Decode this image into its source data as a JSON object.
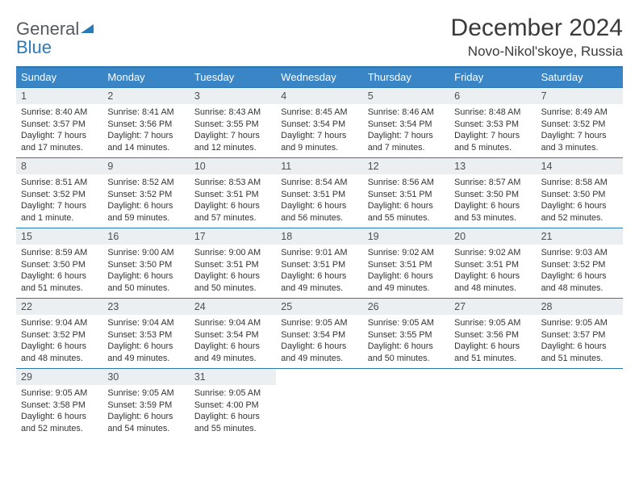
{
  "logo": {
    "general": "General",
    "blue": "Blue"
  },
  "header": {
    "title": "December 2024",
    "location": "Novo-Nikol'skoye, Russia"
  },
  "colors": {
    "header_bg": "#3a85c6",
    "border": "#2a77b5",
    "daynum_bg": "#eceff1",
    "text": "#333333",
    "logo_blue": "#2a7ab9",
    "logo_gray": "#555a5e"
  },
  "day_names": [
    "Sunday",
    "Monday",
    "Tuesday",
    "Wednesday",
    "Thursday",
    "Friday",
    "Saturday"
  ],
  "weeks": [
    [
      {
        "n": "1",
        "sr": "Sunrise: 8:40 AM",
        "ss": "Sunset: 3:57 PM",
        "d1": "Daylight: 7 hours",
        "d2": "and 17 minutes."
      },
      {
        "n": "2",
        "sr": "Sunrise: 8:41 AM",
        "ss": "Sunset: 3:56 PM",
        "d1": "Daylight: 7 hours",
        "d2": "and 14 minutes."
      },
      {
        "n": "3",
        "sr": "Sunrise: 8:43 AM",
        "ss": "Sunset: 3:55 PM",
        "d1": "Daylight: 7 hours",
        "d2": "and 12 minutes."
      },
      {
        "n": "4",
        "sr": "Sunrise: 8:45 AM",
        "ss": "Sunset: 3:54 PM",
        "d1": "Daylight: 7 hours",
        "d2": "and 9 minutes."
      },
      {
        "n": "5",
        "sr": "Sunrise: 8:46 AM",
        "ss": "Sunset: 3:54 PM",
        "d1": "Daylight: 7 hours",
        "d2": "and 7 minutes."
      },
      {
        "n": "6",
        "sr": "Sunrise: 8:48 AM",
        "ss": "Sunset: 3:53 PM",
        "d1": "Daylight: 7 hours",
        "d2": "and 5 minutes."
      },
      {
        "n": "7",
        "sr": "Sunrise: 8:49 AM",
        "ss": "Sunset: 3:52 PM",
        "d1": "Daylight: 7 hours",
        "d2": "and 3 minutes."
      }
    ],
    [
      {
        "n": "8",
        "sr": "Sunrise: 8:51 AM",
        "ss": "Sunset: 3:52 PM",
        "d1": "Daylight: 7 hours",
        "d2": "and 1 minute."
      },
      {
        "n": "9",
        "sr": "Sunrise: 8:52 AM",
        "ss": "Sunset: 3:52 PM",
        "d1": "Daylight: 6 hours",
        "d2": "and 59 minutes."
      },
      {
        "n": "10",
        "sr": "Sunrise: 8:53 AM",
        "ss": "Sunset: 3:51 PM",
        "d1": "Daylight: 6 hours",
        "d2": "and 57 minutes."
      },
      {
        "n": "11",
        "sr": "Sunrise: 8:54 AM",
        "ss": "Sunset: 3:51 PM",
        "d1": "Daylight: 6 hours",
        "d2": "and 56 minutes."
      },
      {
        "n": "12",
        "sr": "Sunrise: 8:56 AM",
        "ss": "Sunset: 3:51 PM",
        "d1": "Daylight: 6 hours",
        "d2": "and 55 minutes."
      },
      {
        "n": "13",
        "sr": "Sunrise: 8:57 AM",
        "ss": "Sunset: 3:50 PM",
        "d1": "Daylight: 6 hours",
        "d2": "and 53 minutes."
      },
      {
        "n": "14",
        "sr": "Sunrise: 8:58 AM",
        "ss": "Sunset: 3:50 PM",
        "d1": "Daylight: 6 hours",
        "d2": "and 52 minutes."
      }
    ],
    [
      {
        "n": "15",
        "sr": "Sunrise: 8:59 AM",
        "ss": "Sunset: 3:50 PM",
        "d1": "Daylight: 6 hours",
        "d2": "and 51 minutes."
      },
      {
        "n": "16",
        "sr": "Sunrise: 9:00 AM",
        "ss": "Sunset: 3:50 PM",
        "d1": "Daylight: 6 hours",
        "d2": "and 50 minutes."
      },
      {
        "n": "17",
        "sr": "Sunrise: 9:00 AM",
        "ss": "Sunset: 3:51 PM",
        "d1": "Daylight: 6 hours",
        "d2": "and 50 minutes."
      },
      {
        "n": "18",
        "sr": "Sunrise: 9:01 AM",
        "ss": "Sunset: 3:51 PM",
        "d1": "Daylight: 6 hours",
        "d2": "and 49 minutes."
      },
      {
        "n": "19",
        "sr": "Sunrise: 9:02 AM",
        "ss": "Sunset: 3:51 PM",
        "d1": "Daylight: 6 hours",
        "d2": "and 49 minutes."
      },
      {
        "n": "20",
        "sr": "Sunrise: 9:02 AM",
        "ss": "Sunset: 3:51 PM",
        "d1": "Daylight: 6 hours",
        "d2": "and 48 minutes."
      },
      {
        "n": "21",
        "sr": "Sunrise: 9:03 AM",
        "ss": "Sunset: 3:52 PM",
        "d1": "Daylight: 6 hours",
        "d2": "and 48 minutes."
      }
    ],
    [
      {
        "n": "22",
        "sr": "Sunrise: 9:04 AM",
        "ss": "Sunset: 3:52 PM",
        "d1": "Daylight: 6 hours",
        "d2": "and 48 minutes."
      },
      {
        "n": "23",
        "sr": "Sunrise: 9:04 AM",
        "ss": "Sunset: 3:53 PM",
        "d1": "Daylight: 6 hours",
        "d2": "and 49 minutes."
      },
      {
        "n": "24",
        "sr": "Sunrise: 9:04 AM",
        "ss": "Sunset: 3:54 PM",
        "d1": "Daylight: 6 hours",
        "d2": "and 49 minutes."
      },
      {
        "n": "25",
        "sr": "Sunrise: 9:05 AM",
        "ss": "Sunset: 3:54 PM",
        "d1": "Daylight: 6 hours",
        "d2": "and 49 minutes."
      },
      {
        "n": "26",
        "sr": "Sunrise: 9:05 AM",
        "ss": "Sunset: 3:55 PM",
        "d1": "Daylight: 6 hours",
        "d2": "and 50 minutes."
      },
      {
        "n": "27",
        "sr": "Sunrise: 9:05 AM",
        "ss": "Sunset: 3:56 PM",
        "d1": "Daylight: 6 hours",
        "d2": "and 51 minutes."
      },
      {
        "n": "28",
        "sr": "Sunrise: 9:05 AM",
        "ss": "Sunset: 3:57 PM",
        "d1": "Daylight: 6 hours",
        "d2": "and 51 minutes."
      }
    ],
    [
      {
        "n": "29",
        "sr": "Sunrise: 9:05 AM",
        "ss": "Sunset: 3:58 PM",
        "d1": "Daylight: 6 hours",
        "d2": "and 52 minutes."
      },
      {
        "n": "30",
        "sr": "Sunrise: 9:05 AM",
        "ss": "Sunset: 3:59 PM",
        "d1": "Daylight: 6 hours",
        "d2": "and 54 minutes."
      },
      {
        "n": "31",
        "sr": "Sunrise: 9:05 AM",
        "ss": "Sunset: 4:00 PM",
        "d1": "Daylight: 6 hours",
        "d2": "and 55 minutes."
      },
      {
        "n": "",
        "sr": "",
        "ss": "",
        "d1": "",
        "d2": ""
      },
      {
        "n": "",
        "sr": "",
        "ss": "",
        "d1": "",
        "d2": ""
      },
      {
        "n": "",
        "sr": "",
        "ss": "",
        "d1": "",
        "d2": ""
      },
      {
        "n": "",
        "sr": "",
        "ss": "",
        "d1": "",
        "d2": ""
      }
    ]
  ]
}
